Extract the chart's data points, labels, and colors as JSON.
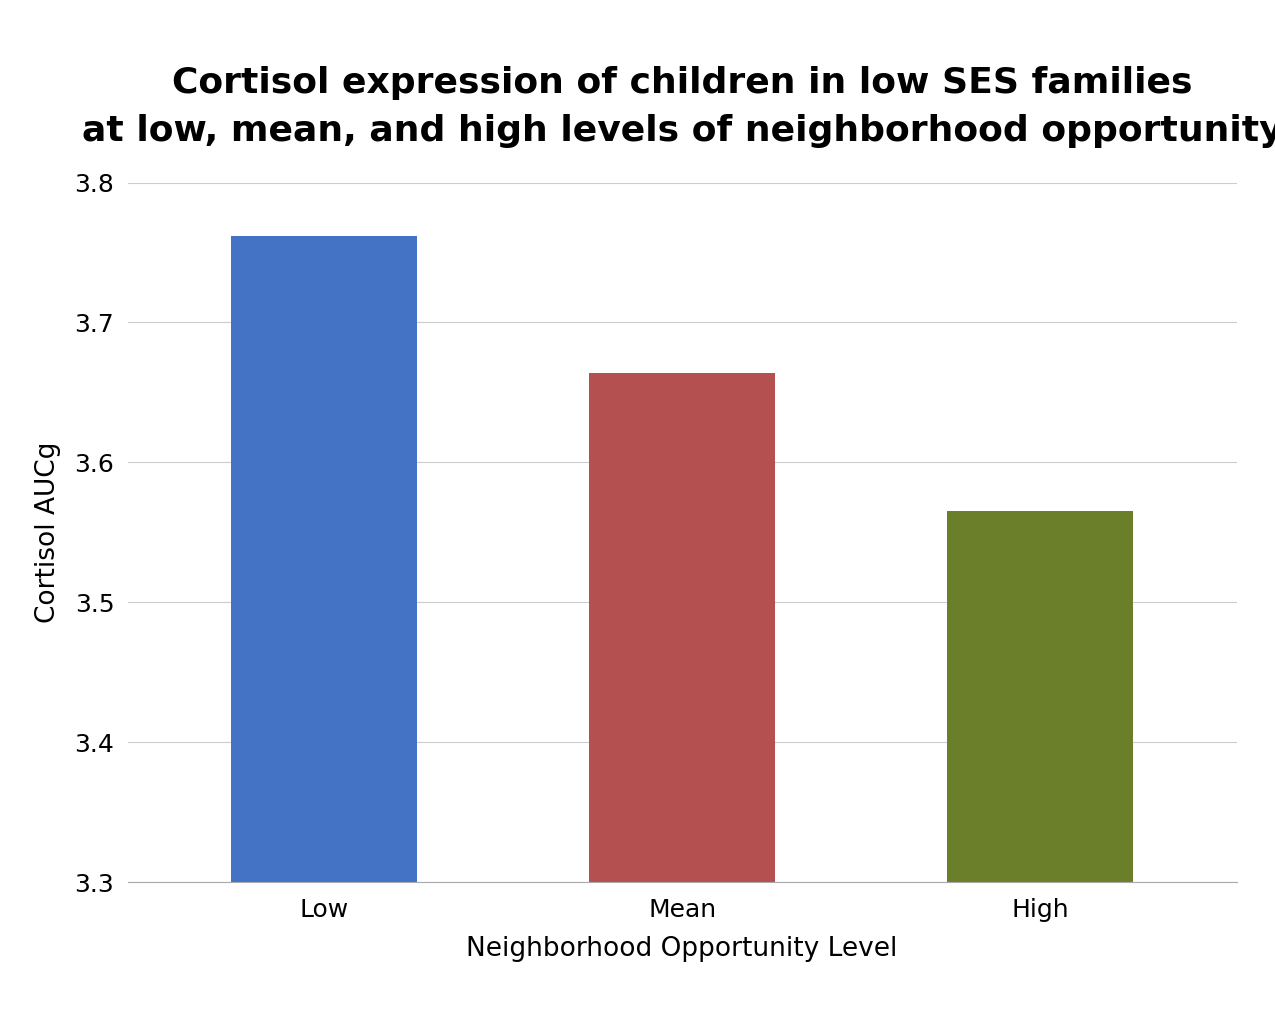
{
  "title_line1": "Cortisol expression of children in low SES families",
  "title_line2": "at low, mean, and high levels of neighborhood opportunity",
  "categories": [
    "Low",
    "Mean",
    "High"
  ],
  "values": [
    3.762,
    3.664,
    3.565
  ],
  "bar_colors": [
    "#4472C4",
    "#B55050",
    "#6B7F2A"
  ],
  "xlabel": "Neighborhood Opportunity Level",
  "ylabel": "Cortisol AUCg",
  "ylim": [
    3.3,
    3.8
  ],
  "yticks": [
    3.3,
    3.4,
    3.5,
    3.6,
    3.7,
    3.8
  ],
  "background_color": "#FFFFFF",
  "title_fontsize": 26,
  "axis_label_fontsize": 19,
  "tick_fontsize": 18,
  "bar_width": 0.52,
  "grid_color": "#CCCCCC",
  "spine_color": "#AAAAAA"
}
